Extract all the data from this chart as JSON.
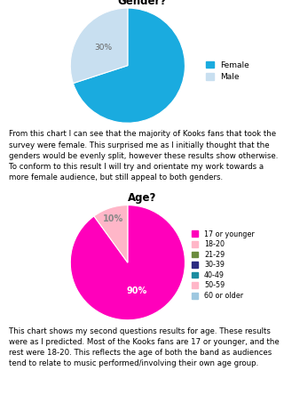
{
  "gender_title": "Gender?",
  "gender_labels": [
    "Female",
    "Male"
  ],
  "gender_values": [
    70,
    30
  ],
  "gender_colors": [
    "#1AABDF",
    "#C8DFF0"
  ],
  "gender_startangle": 90,
  "age_title": "Age?",
  "age_labels": [
    "17 or younger",
    "18-20",
    "21-29",
    "30-39",
    "40-49",
    "50-59",
    "60 or older"
  ],
  "age_values": [
    90,
    10
  ],
  "age_colors_pie": [
    "#FF00BB",
    "#FFB6C8"
  ],
  "age_legend_colors": [
    "#FF00BB",
    "#FFB6C8",
    "#6B8C3E",
    "#2B2B80",
    "#1A8CA0",
    "#FFB6C8",
    "#9EC8E0"
  ],
  "age_startangle": 90,
  "text1": "From this chart I can see that the majority of Kooks fans that took the survey were female. This surprised me as I initially thought that the genders would be evenly split, however these results show otherwise. To conform to this result I will try and orientate my work towards a more female audience, but still appeal to both genders.",
  "text2": "This chart shows my second questions results for age. These results were as I predicted. Most of the Kooks fans are 17 or younger, and the rest were 18-20. This reflects the age of both the band as audiences tend to relate to music performed/involving their own age group.",
  "bg_color": "#FFFFFF",
  "box_facecolor": "#F7F7F7",
  "box_edgecolor": "#CCCCCC",
  "text_fontsize": 6.2,
  "title_fontsize": 8.5,
  "legend_fontsize": 6.5
}
